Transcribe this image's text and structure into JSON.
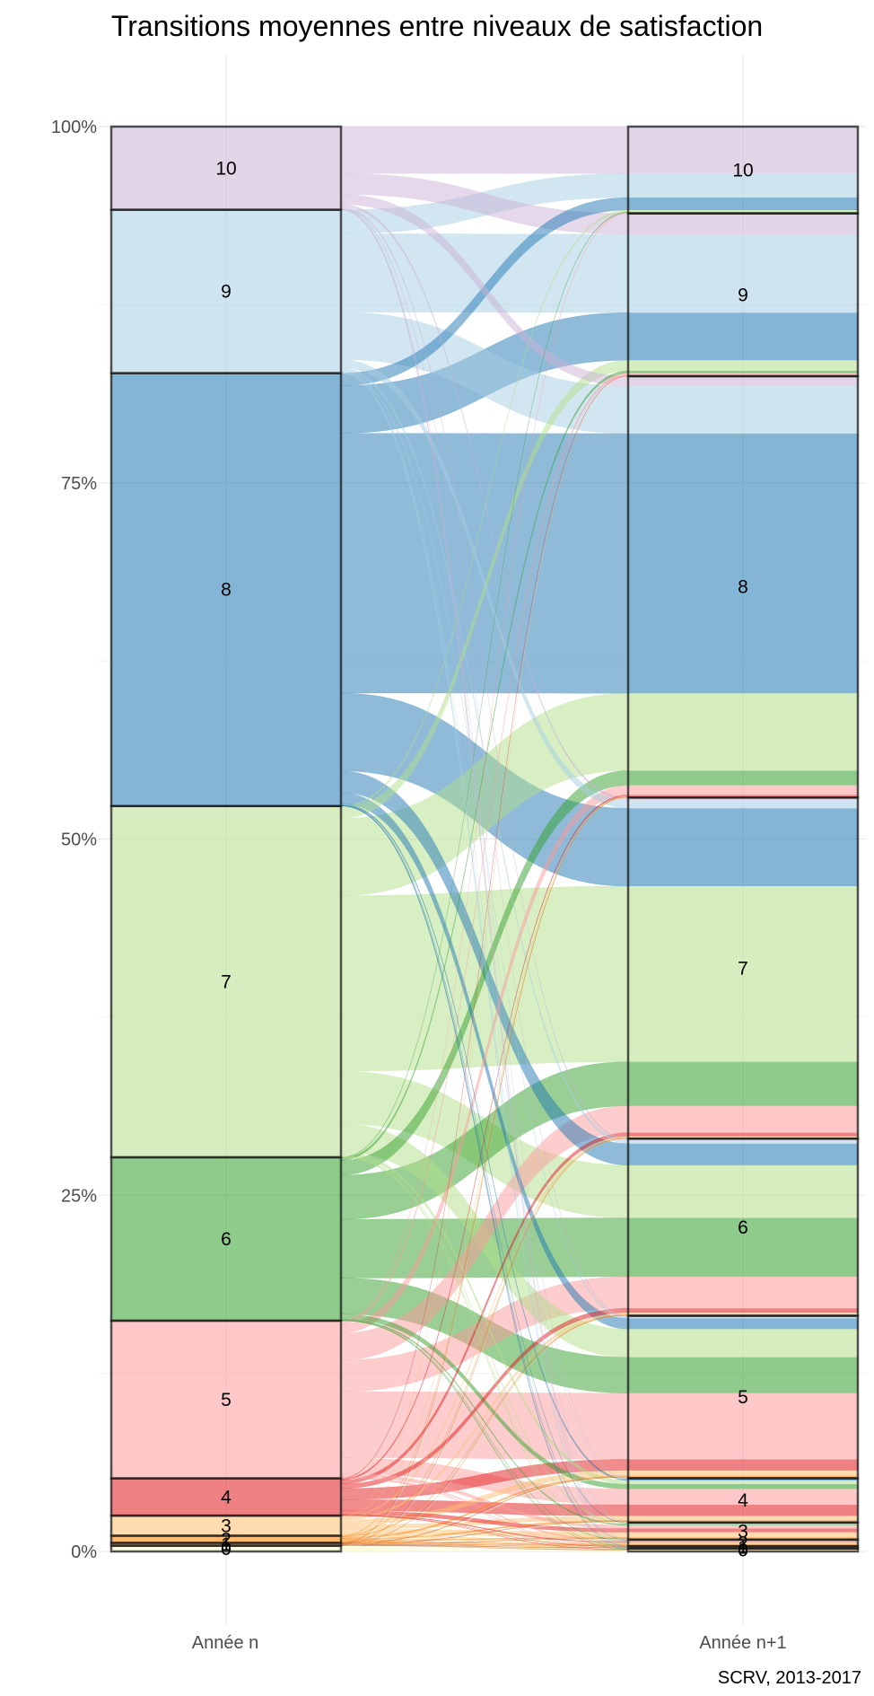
{
  "chart_data": {
    "type": "alluvial",
    "title": "Transitions moyennes entre niveaux de satisfaction",
    "caption": "SCRV, 2013-2017",
    "axes": [
      "Année n",
      "Année n+1"
    ],
    "yticks": [
      "0%",
      "25%",
      "50%",
      "75%",
      "100%"
    ],
    "ylim": [
      0,
      100
    ],
    "grid": true,
    "levels": [
      "0",
      "1",
      "2",
      "3",
      "4",
      "5",
      "6",
      "7",
      "8",
      "9",
      "10"
    ],
    "colors": [
      "#FFFFCC",
      "#B15928",
      "#FF7F00",
      "#FDBF6F",
      "#E31A1C",
      "#FB9A99",
      "#33A02C",
      "#B2DF8A",
      "#1F78B4",
      "#A6CEE3",
      "#CAB2D6"
    ],
    "shares_year_n": [
      0.4,
      0.2,
      0.5,
      1.4,
      2.6,
      11.0,
      11.4,
      24.5,
      30.2,
      11.4,
      5.8
    ],
    "transitions": [
      [
        25,
        5,
        10,
        15,
        15,
        15,
        5,
        5,
        5,
        0,
        0
      ],
      [
        5,
        25,
        15,
        10,
        15,
        15,
        5,
        5,
        5,
        0,
        0
      ],
      [
        2,
        4,
        20,
        18,
        18,
        20,
        8,
        6,
        4,
        0,
        0
      ],
      [
        1,
        2,
        6,
        25,
        20,
        25,
        10,
        7,
        3,
        1,
        0
      ],
      [
        0.5,
        0.5,
        2,
        10,
        30,
        30,
        12,
        10,
        4,
        1,
        0
      ],
      [
        0.2,
        0.1,
        0.7,
        2,
        10,
        42,
        20,
        17,
        6,
        1.5,
        0.5
      ],
      [
        0.1,
        0.05,
        0.2,
        0.7,
        3,
        22,
        36,
        27,
        9,
        1.5,
        0.45
      ],
      [
        0.05,
        0.03,
        0.12,
        0.3,
        1,
        8,
        15,
        50,
        22,
        3,
        0.5
      ],
      [
        0.03,
        0.01,
        0.05,
        0.1,
        0.4,
        2.5,
        5,
        18,
        60,
        11,
        2.9
      ],
      [
        0.02,
        0.01,
        0.02,
        0.05,
        0.2,
        1,
        2,
        5,
        29,
        48,
        14.7
      ],
      [
        0.05,
        0.02,
        0.05,
        0.1,
        0.3,
        1,
        2,
        3,
        12,
        25,
        56.48
      ]
    ]
  }
}
